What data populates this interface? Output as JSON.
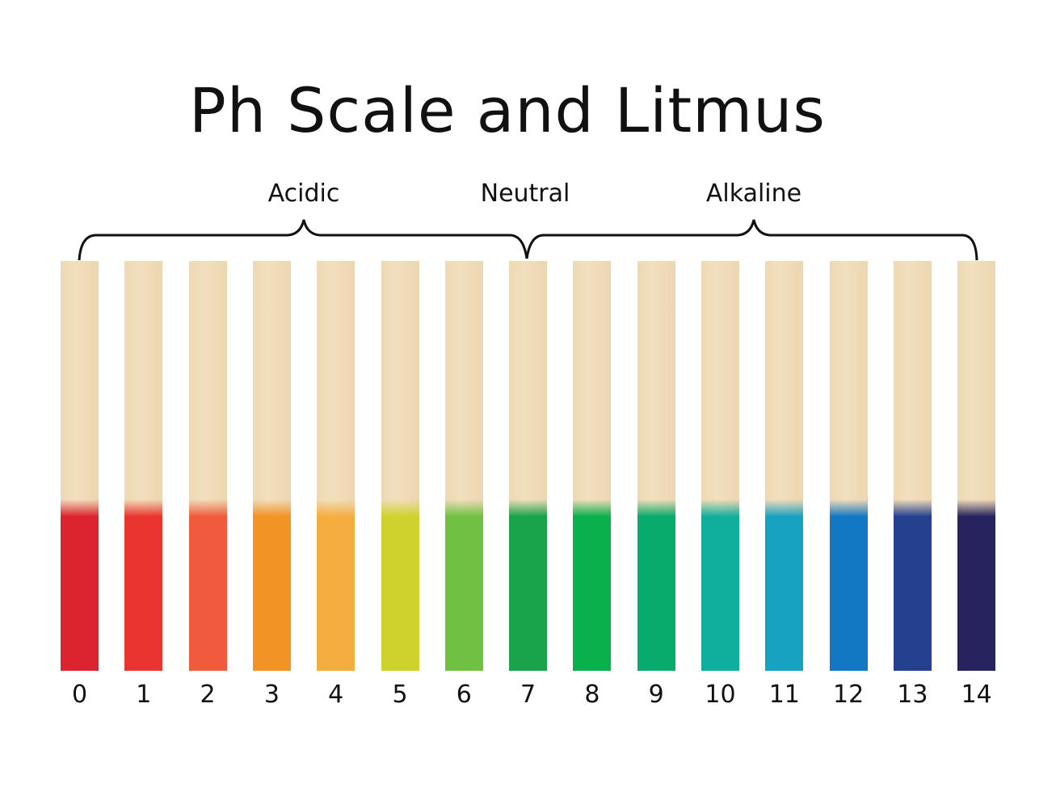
{
  "title": "Ph Scale and Litmus",
  "groups": [
    {
      "label": "Acidic"
    },
    {
      "label": "Neutral"
    },
    {
      "label": "Alkaline"
    }
  ],
  "strips": [
    {
      "ph": "0",
      "color": "#dc2430"
    },
    {
      "ph": "1",
      "color": "#ea342f"
    },
    {
      "ph": "2",
      "color": "#ef5b3b"
    },
    {
      "ph": "3",
      "color": "#f29325"
    },
    {
      "ph": "4",
      "color": "#f6ad40"
    },
    {
      "ph": "5",
      "color": "#cfd22d"
    },
    {
      "ph": "6",
      "color": "#6fc043"
    },
    {
      "ph": "7",
      "color": "#19a34a"
    },
    {
      "ph": "8",
      "color": "#09b04c"
    },
    {
      "ph": "9",
      "color": "#07ab6c"
    },
    {
      "ph": "10",
      "color": "#10ae9c"
    },
    {
      "ph": "11",
      "color": "#17a2c2"
    },
    {
      "ph": "12",
      "color": "#1378c4"
    },
    {
      "ph": "13",
      "color": "#24408f"
    },
    {
      "ph": "14",
      "color": "#26235f"
    }
  ]
}
